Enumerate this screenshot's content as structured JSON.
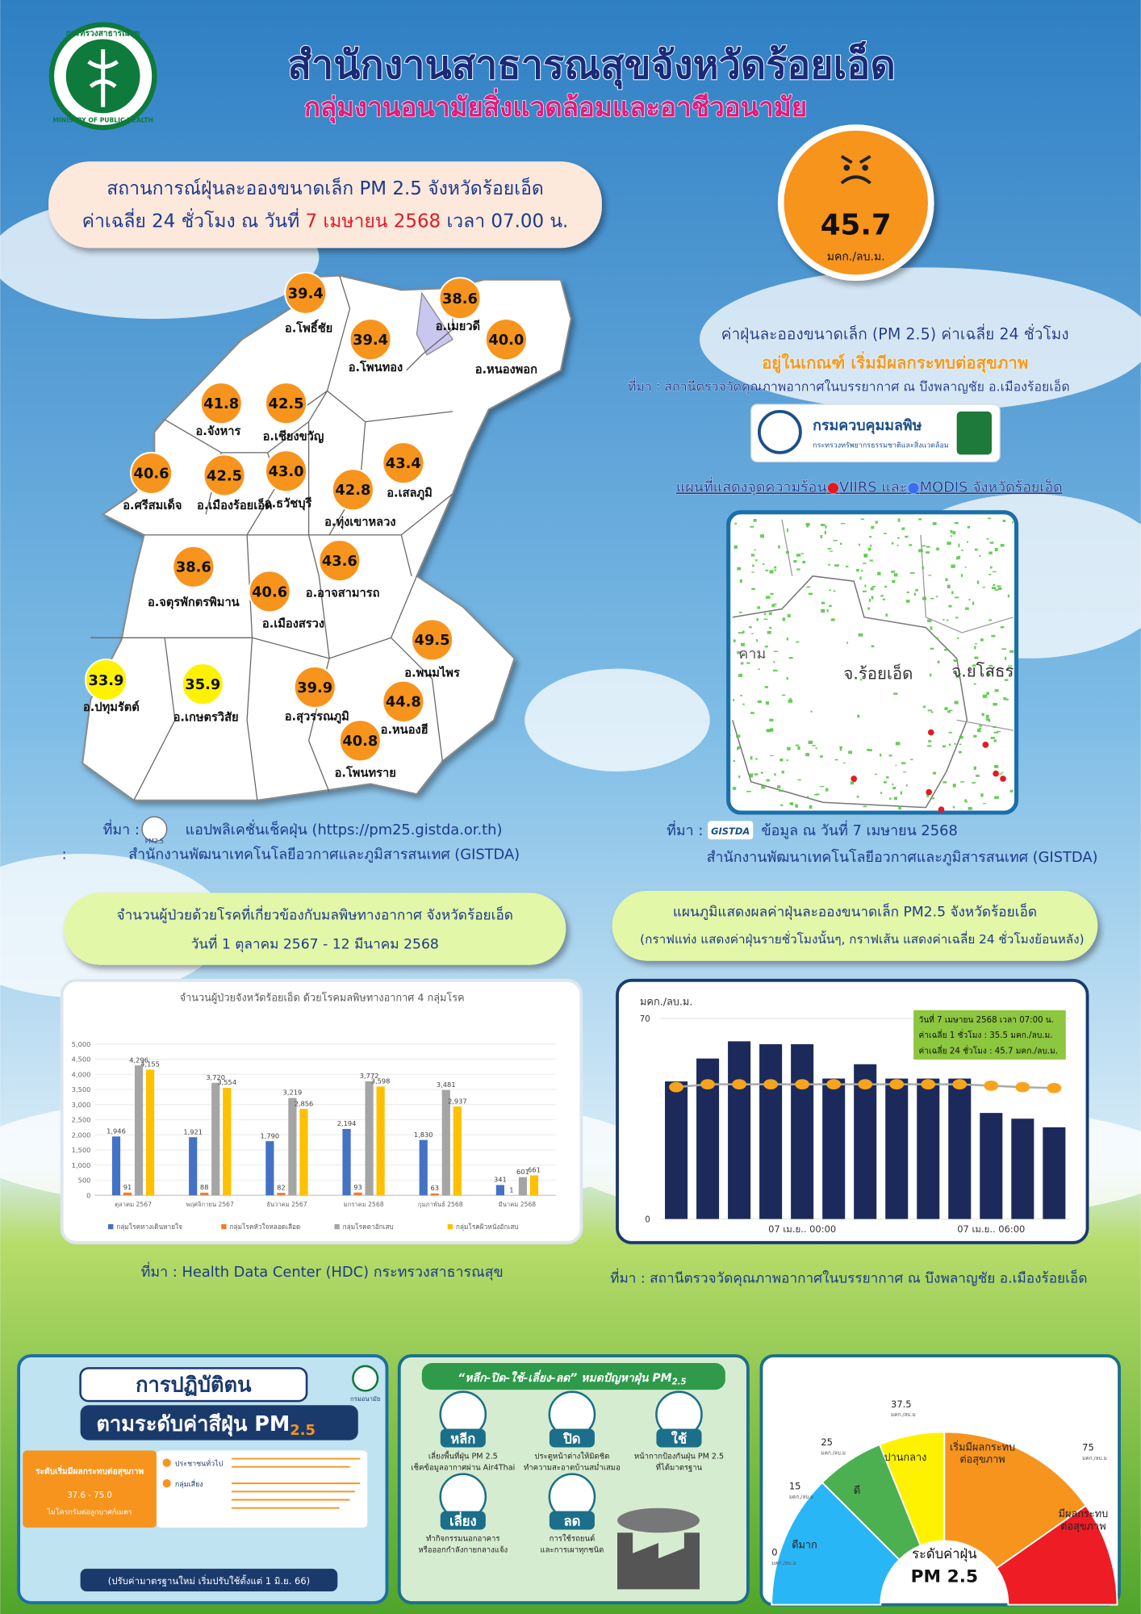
{
  "header": {
    "title": "สำนักงานสาธารณสุขจังหวัดร้อยเอ็ด",
    "subtitle": "กลุ่มงานอนามัยสิ่งแวดล้อมและอาชีวอนามัย",
    "logo_text": "กระทรวงสาธารณสุข",
    "logo_text_en": "MINISTRY OF PUBLIC HEALTH"
  },
  "situation": {
    "line1": "สถานการณ์ฝุ่นละอองขนาดเล็ก PM 2.5 จังหวัดร้อยเอ็ด",
    "line2_before": "ค่าเฉลี่ย 24 ชั่วโมง ณ วันที่ ",
    "line2_date": "7 เมษายน 2568",
    "line2_after": " เวลา 07.00 น."
  },
  "badge": {
    "value": "45.7",
    "unit": "มคก./ลบ.ม.",
    "color": "#f7941d"
  },
  "status": {
    "line1": "ค่าฝุ่นละอองขนาดเล็ก (PM 2.5) ค่าเฉลี่ย 24 ชั่วโมง",
    "line2": "อยู่ในเกณฑ์ เริ่มมีผลกระทบต่อสุขภาพ",
    "source": "ที่มา : สถานีตรวจวัดคุณภาพอากาศในบรรยากาศ ณ บึงพลาญชัย อ.เมืองร้อยเอ็ด",
    "agency": "กรมควบคุมมลพิษ",
    "agency_sub": "กระทรวงทรัพยากรธรรมชาติและสิ่งแวดล้อม"
  },
  "district_map": {
    "districts": [
      {
        "name": "อ.โพธิ์ชัย",
        "value": "39.4",
        "color": "#f7941d"
      },
      {
        "name": "อ.เมยวดี",
        "value": "38.6",
        "color": "#f7941d"
      },
      {
        "name": "อ.โพนทอง",
        "value": "39.4",
        "color": "#f7941d"
      },
      {
        "name": "อ.หนองพอก",
        "value": "40.0",
        "color": "#f7941d"
      },
      {
        "name": "อ.จังหาร",
        "value": "41.8",
        "color": "#f7941d"
      },
      {
        "name": "อ.เชียงขวัญ",
        "value": "42.5",
        "color": "#f7941d"
      },
      {
        "name": "อ.ศรีสมเด็จ",
        "value": "40.6",
        "color": "#f7941d"
      },
      {
        "name": "อ.เมืองร้อยเอ็ด",
        "value": "42.5",
        "color": "#f7941d"
      },
      {
        "name": "อ.ธวัชบุรี",
        "value": "43.0",
        "color": "#f7941d"
      },
      {
        "name": "อ.ทุ่งเขาหลวง",
        "value": "42.8",
        "color": "#f7941d"
      },
      {
        "name": "อ.เสลภูมิ",
        "value": "43.4",
        "color": "#f7941d"
      },
      {
        "name": "อ.จตุรพักตรพิมาน",
        "value": "38.6",
        "color": "#f7941d"
      },
      {
        "name": "อ.อาจสามารถ",
        "value": "43.6",
        "color": "#f7941d"
      },
      {
        "name": "อ.เมืองสรวง",
        "value": "40.6",
        "color": "#f7941d"
      },
      {
        "name": "อ.พนมไพร",
        "value": "49.5",
        "color": "#f7941d"
      },
      {
        "name": "อ.ปทุมรัตต์",
        "value": "33.9",
        "color": "#fff200"
      },
      {
        "name": "อ.เกษตรวิสัย",
        "value": "35.9",
        "color": "#fff200"
      },
      {
        "name": "อ.สุวรรณภูมิ",
        "value": "39.9",
        "color": "#f7941d"
      },
      {
        "name": "อ.หนองฮี",
        "value": "44.8",
        "color": "#f7941d"
      },
      {
        "name": "อ.โพนทราย",
        "value": "40.8",
        "color": "#f7941d"
      }
    ],
    "source_label": "ที่มา :",
    "app_badge": "PM2.5",
    "source_line1": "แอปพลิเคชั่นเช็คฝุ่น (https://pm25.gistda.or.th)",
    "source_colon": ":",
    "source_line2": "สำนักงานพัฒนาเทคโนโลยีอวกาศและภูมิสารสนเทศ (GISTDA)"
  },
  "hotspot_map": {
    "title_part1": "แผนที่แสดงจุดความร้อน",
    "title_part2": "VIIRS และ",
    "title_part3": "MODIS จังหวัดร้อยเอ็ด",
    "labels": [
      "คาม",
      "จ.ร้อยเอ็ด",
      "จ.ยโสธร"
    ],
    "source_label": "ที่มา :",
    "source_logo": "GISTDA",
    "source_date": "ข้อมูล ณ วันที่ 7 เมษายน 2568",
    "source_agency": "สำนักงานพัฒนาเทคโนโลยีอวกาศและภูมิสารสนเทศ (GISTDA)"
  },
  "patients": {
    "heading_line1": "จำนวนผู้ป่วยด้วยโรคที่เกี่ยวข้องกับมลพิษทางอากาศ จังหวัดร้อยเอ็ด",
    "heading_line2": "วันที่ 1 ตุลาคม 2567 - 12 มีนาคม 2568",
    "chart": {
      "type": "bar",
      "title": "จำนวนผู้ป่วยจังหวัดร้อยเอ็ด ด้วยโรคมลพิษทางอากาศ 4 กลุ่มโรค",
      "categories": [
        "ตุลาคม 2567",
        "พฤศจิกายน 2567",
        "ธันวาคม 2567",
        "มกราคม 2568",
        "กุมภาพันธ์ 2568",
        "มีนาคม 2568"
      ],
      "series": [
        {
          "name": "กลุ่มโรคทางเดินหายใจ",
          "color": "#4472c4",
          "values": [
            1946,
            1921,
            1790,
            2194,
            1830,
            341
          ],
          "value_labels": [
            "1,946",
            "1,921",
            "1,790",
            "2,194",
            "1,830",
            "341"
          ]
        },
        {
          "name": "กลุ่มโรคหัวใจหลอดเลือด",
          "color": "#ed7d31",
          "values": [
            91,
            88,
            82,
            93,
            63,
            1
          ]
        },
        {
          "name": "กลุ่มโรคตาอักเสบ",
          "color": "#a5a5a5",
          "values": [
            4296,
            3720,
            3219,
            3772,
            3481,
            601
          ],
          "value_labels": [
            "4,296",
            "3,720",
            "3,219",
            "3,772",
            "3,481",
            "601"
          ]
        },
        {
          "name": "กลุ่มโรคผิวหนังอักเสบ",
          "color": "#ffc000",
          "values": [
            4155,
            3554,
            2856,
            3598,
            2937,
            661
          ],
          "value_labels": [
            "4,155",
            "3,554",
            "2,856",
            "3,598",
            "2,937",
            "661"
          ]
        }
      ],
      "ylim": [
        0,
        5000
      ],
      "yticks": [
        0,
        500,
        {
          "value": 1000,
          "label": "1,000"
        },
        {
          "value": 1500,
          "label": "1,500"
        },
        {
          "value": 2000,
          "label": "2,000"
        },
        {
          "value": 2500,
          "label": "2,500"
        },
        {
          "value": 3000,
          "label": "3,000"
        },
        {
          "value": 3500,
          "label": "3,500"
        },
        {
          "value": 4000,
          "label": "4,000"
        },
        {
          "value": 4500,
          "label": "4,500"
        },
        {
          "value": 5000,
          "label": "5,000"
        }
      ],
      "grid": true
    },
    "source": "ที่มา :  Health Data Center (HDC) กระทรวงสาธารณสุข"
  },
  "hourly": {
    "heading_line1": "แผนภูมิแสดงผลค่าฝุ่นละอองขนาดเล็ก PM2.5 จังหวัดร้อยเอ็ด",
    "heading_line2": "(กราฟแท่ง แสดงค่าฝุ่นรายชั่วโมงนั้นๆ, กราฟเส้น แสดงค่าเฉลี่ย 24 ชั่วโมงย้อนหลัง)",
    "chart": {
      "type": "bar-line",
      "y_label": "มคก./ลบ.ม.",
      "categories": [
        null,
        null,
        null,
        null,
        "07 เม.ย.. 00:00",
        null,
        null,
        null,
        null,
        null,
        "07 เม.ย.. 06:00",
        null,
        null
      ],
      "series": [
        {
          "type": "bar",
          "color": "#1b2a5a",
          "values": [
            48,
            56,
            62,
            61,
            61,
            49,
            54,
            49,
            49,
            49,
            37,
            35,
            32
          ]
        },
        {
          "type": "line",
          "color": "#f7a41d",
          "values": [
            46,
            47,
            47,
            47,
            47,
            47,
            47,
            47,
            47,
            47,
            46.5,
            46,
            45.7
          ]
        }
      ],
      "ylim": [
        0,
        70
      ],
      "yticks": [
        0,
        70
      ],
      "info": [
        "วันที่  7 เมษายน  2568  เวลา 07:00 น.",
        "ค่าเฉลี่ย 1 ชั่วโมง  :  35.5 มคก./ลบ.ม.",
        "ค่าเฉลี่ย 24 ชั่วโมง : 45.7 มคก./ลบ.ม."
      ]
    },
    "source": "ที่มา : สถานีตรวจวัดคุณภาพอากาศในบรรยากาศ ณ บึงพลาญชัย อ.เมืองร้อยเอ็ด"
  },
  "poster_practice": {
    "title1": "การปฏิบัติตน",
    "title2": "ตามระดับค่าสีฝุ่น PM",
    "title2_sub": "2.5",
    "agency": "กรมอนามัย",
    "level": "ระดับเริ่มมีผลกระทบต่อสุขภาพ",
    "range": "37.6 - 75.0",
    "range_unit": "ไมโครกรัมต่อลูกบาศก์เมตร",
    "group1": "ประชาชนทั่วไป",
    "group2": "กลุ่มเสี่ยง",
    "note": "(ปรับค่ามาตรฐานใหม่ เริ่มปรับใช้ตั้งแต่ 1 มิ.ย. 66)"
  },
  "poster_actions": {
    "title": "“หลีก-ปิด-ใช้-เลี่ยง-ลด” หมดปัญหาฝุ่น PM",
    "title_sub": "2.5",
    "items": [
      {
        "word": "หลีก",
        "lines": [
          "เลี่ยงพื้นที่ฝุ่น PM 2.5",
          "เช็คข้อมูลอากาศผ่าน Air4Thai"
        ]
      },
      {
        "word": "ปิด",
        "lines": [
          "ประตูหน้าต่างให้มิดชิด",
          "ทำความสะอาดบ้านสม่ำเสมอ"
        ]
      },
      {
        "word": "ใช้",
        "lines": [
          "หน้ากากป้องกันฝุ่น PM 2.5",
          "ที่ได้มาตรฐาน"
        ]
      },
      {
        "word": "เลี่ยง",
        "lines": [
          "ทำกิจกรรมนอกอาคาร",
          "หรือออกกำลังกายกลางแจ้ง"
        ]
      },
      {
        "word": "ลด",
        "lines": [
          "การใช้รถยนต์",
          "และการเผาทุกชนิด"
        ]
      }
    ]
  },
  "gauge": {
    "levels": [
      {
        "lines": [
          "ดีมาก"
        ],
        "color": "#29b6f6"
      },
      {
        "lines": [
          "ดี"
        ],
        "color": "#4caf50"
      },
      {
        "lines": [
          "ปานกลาง"
        ],
        "color": "#fff200"
      },
      {
        "lines": [
          "เริ่มมีผลกระทบ",
          "ต่อสุขภาพ"
        ],
        "color": "#f7941d"
      },
      {
        "lines": [
          "มีผลกระทบ",
          "ต่อสุขภาพ"
        ],
        "color": "#ee1c25"
      }
    ],
    "thresholds": [
      "0",
      "15",
      "25",
      "37.5",
      "75"
    ],
    "unit": "มคก./ลบ.ม",
    "center_line1": "ระดับค่าฝุ่น",
    "center_line2": "PM 2.5"
  }
}
